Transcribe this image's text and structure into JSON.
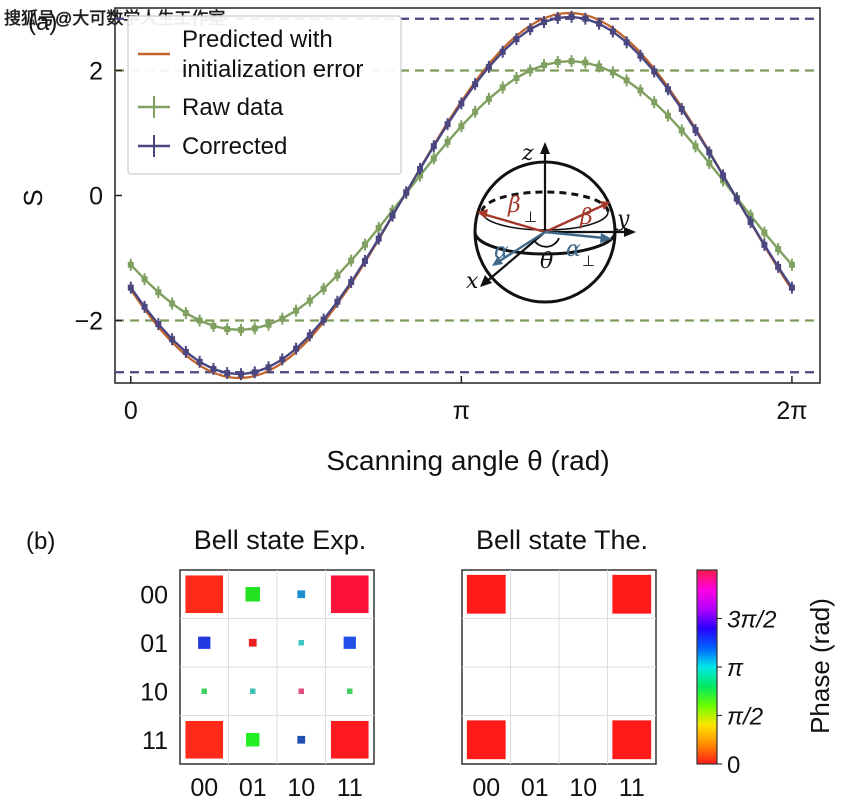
{
  "watermark": "搜狐号@大可数学人生工作室",
  "panel_a": {
    "label": "(a)",
    "chart_data": {
      "type": "line",
      "xlabel": "Scanning angle θ (rad)",
      "ylabel": "S",
      "xlim": [
        -0.15,
        6.55
      ],
      "ylim": [
        -3.0,
        3.0
      ],
      "x_ticks": [
        {
          "value": 0,
          "label": "0"
        },
        {
          "value": 3.1416,
          "label": "π"
        },
        {
          "value": 6.2832,
          "label": "2π"
        }
      ],
      "y_ticks": [
        {
          "value": -2,
          "label": "−2"
        },
        {
          "value": 0,
          "label": "0"
        },
        {
          "value": 2,
          "label": "2"
        }
      ],
      "reference_lines": [
        {
          "y": 2.8284,
          "color": "#4a4680"
        },
        {
          "y": 2.0,
          "color": "#7c9a5a"
        },
        {
          "y": -2.0,
          "color": "#7c9a5a"
        },
        {
          "y": -2.8284,
          "color": "#4a4680"
        }
      ],
      "series": [
        {
          "name": "Predicted with initialization error",
          "color": "#c0622a",
          "kind": "line",
          "amplitude": 2.92,
          "phase": 0.785,
          "points": 200
        },
        {
          "name": "Raw data",
          "color": "#7fa060",
          "kind": "errorbar",
          "amplitude": 2.15,
          "phase": 0.785,
          "points": 48
        },
        {
          "name": "Corrected",
          "color": "#4a4680",
          "kind": "errorbar",
          "amplitude": 2.86,
          "phase": 0.785,
          "points": 48
        }
      ],
      "legend": {
        "position": "top-left",
        "entries": [
          {
            "line1": "Predicted with",
            "line2": "initialization error"
          },
          {
            "line1": "Raw data"
          },
          {
            "line1": "Corrected"
          }
        ]
      },
      "inset_labels": {
        "z": "z",
        "y": "y",
        "x": "x",
        "beta_perp": "β",
        "beta": "β",
        "alpha": "α",
        "alpha_perp": "α",
        "theta": "θ",
        "perp": "⊥"
      }
    }
  },
  "panel_b": {
    "label": "(b)",
    "chart_data": {
      "type": "heatmap",
      "basis": [
        "00",
        "01",
        "10",
        "11"
      ],
      "matrices": [
        {
          "title": "Bell state Exp.",
          "cells": [
            [
              {
                "m": 0.47,
                "c": "#ff2a1a"
              },
              {
                "m": 0.07,
                "c": "#22e322"
              },
              {
                "m": 0.02,
                "c": "#1c8fd0"
              },
              {
                "m": 0.47,
                "c": "#ff1238"
              }
            ],
            [
              {
                "m": 0.05,
                "c": "#2038e0"
              },
              {
                "m": 0.02,
                "c": "#e82020"
              },
              {
                "m": 0.01,
                "c": "#40c8c0"
              },
              {
                "m": 0.05,
                "c": "#2050e8"
              }
            ],
            [
              {
                "m": 0.01,
                "c": "#40d060"
              },
              {
                "m": 0.01,
                "c": "#40c0b0"
              },
              {
                "m": 0.01,
                "c": "#e05080"
              },
              {
                "m": 0.01,
                "c": "#40d060"
              }
            ],
            [
              {
                "m": 0.47,
                "c": "#ff2a1a"
              },
              {
                "m": 0.06,
                "c": "#22f022"
              },
              {
                "m": 0.02,
                "c": "#1f4fb0"
              },
              {
                "m": 0.47,
                "c": "#ff1a20"
              }
            ]
          ]
        },
        {
          "title": "Bell state The.",
          "cells": [
            [
              {
                "m": 0.5,
                "c": "#ff1a1a"
              },
              {
                "m": 0,
                "c": "#ff1a1a"
              },
              {
                "m": 0,
                "c": "#ff1a1a"
              },
              {
                "m": 0.5,
                "c": "#ff1a1a"
              }
            ],
            [
              {
                "m": 0,
                "c": "#ff1a1a"
              },
              {
                "m": 0,
                "c": "#ff1a1a"
              },
              {
                "m": 0,
                "c": "#ff1a1a"
              },
              {
                "m": 0,
                "c": "#ff1a1a"
              }
            ],
            [
              {
                "m": 0,
                "c": "#ff1a1a"
              },
              {
                "m": 0,
                "c": "#ff1a1a"
              },
              {
                "m": 0,
                "c": "#ff1a1a"
              },
              {
                "m": 0,
                "c": "#ff1a1a"
              }
            ],
            [
              {
                "m": 0.5,
                "c": "#ff1a1a"
              },
              {
                "m": 0,
                "c": "#ff1a1a"
              },
              {
                "m": 0,
                "c": "#ff1a1a"
              },
              {
                "m": 0.5,
                "c": "#ff1a1a"
              }
            ]
          ]
        }
      ],
      "colorbar": {
        "label": "Phase (rad)",
        "ticks": [
          "0",
          "π/2",
          "π",
          "3π/2"
        ],
        "tick_values": [
          0,
          1.5708,
          3.1416,
          4.7124
        ],
        "range": [
          0,
          6.2832
        ],
        "stops": [
          "#ff1a1a",
          "#ff8a00",
          "#ffe400",
          "#6cff00",
          "#00e860",
          "#00e8e8",
          "#0060ff",
          "#2a00ff",
          "#b400ff",
          "#ff00e0",
          "#ff1a4a"
        ]
      }
    }
  }
}
